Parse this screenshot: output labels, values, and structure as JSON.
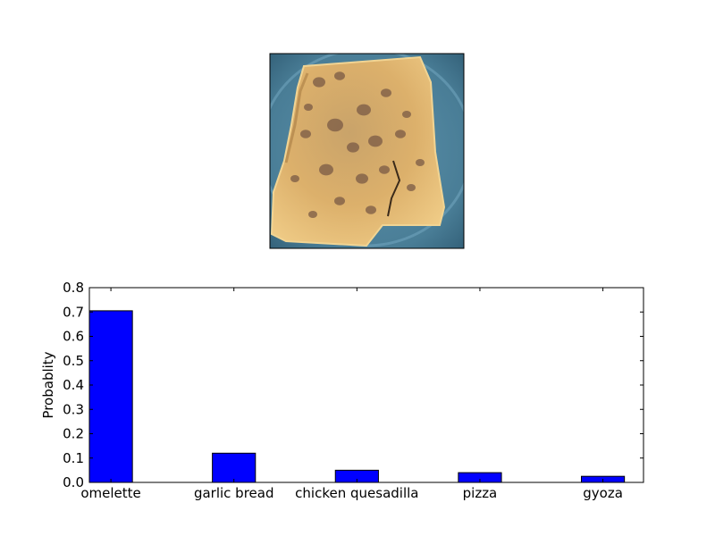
{
  "photo": {
    "description": "omelette",
    "plate_color": "#4a7c95",
    "food_color": "#e6bd72"
  },
  "chart_data": {
    "type": "bar",
    "categories": [
      "omelette",
      "garlic bread",
      "chicken quesadilla",
      "pizza",
      "gyoza"
    ],
    "values": [
      0.705,
      0.12,
      0.05,
      0.04,
      0.025
    ],
    "xlabel": "",
    "ylabel": "Probablity",
    "ylim": [
      0,
      0.8
    ],
    "yticks": [
      "0.0",
      "0.1",
      "0.2",
      "0.3",
      "0.4",
      "0.5",
      "0.6",
      "0.7",
      "0.8"
    ],
    "bar_color": "#0000ff",
    "grid": false
  }
}
